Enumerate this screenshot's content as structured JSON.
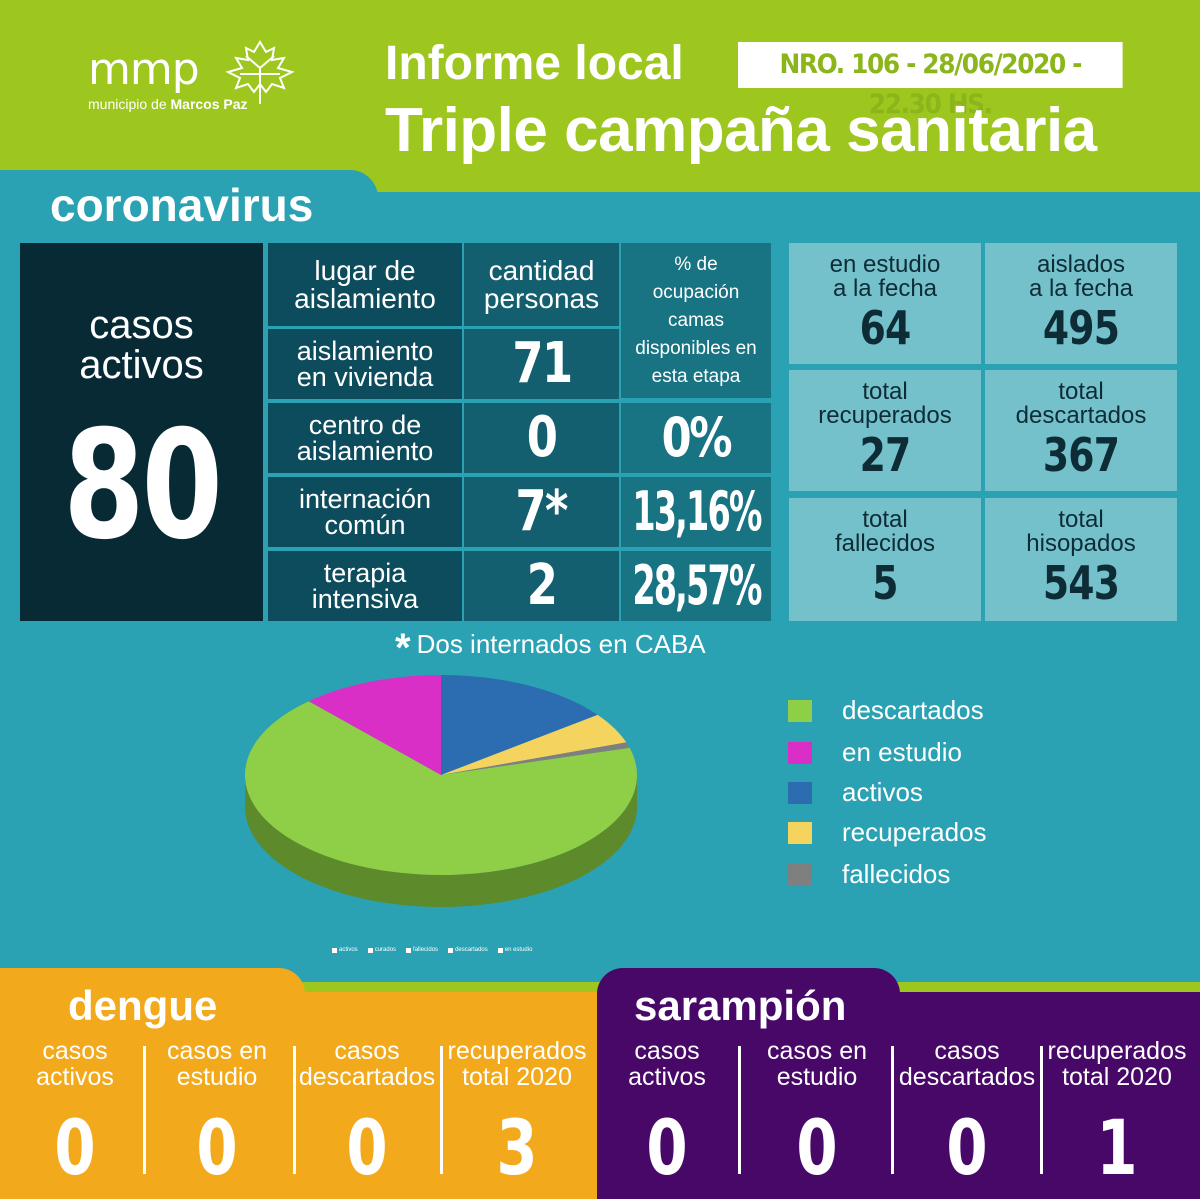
{
  "header": {
    "logo_main": "mmp",
    "logo_sub_prefix": "municipio de ",
    "logo_sub_bold": "Marcos Paz",
    "title_line1": "Informe local",
    "report_number": "NRO. 106 - 28/06/2020 - 22.30 HS.",
    "title_line2": "Triple campaña sanitaria"
  },
  "coronavirus": {
    "title": "coronavirus",
    "active_label_1": "casos",
    "active_label_2": "activos",
    "active_value": "80",
    "table": {
      "headers": {
        "col1": [
          "lugar de",
          "aislamiento"
        ],
        "col2": [
          "cantidad",
          "personas"
        ],
        "col3": [
          "% de",
          "ocupación",
          "camas",
          "disponibles en",
          "esta etapa"
        ]
      },
      "rows": [
        {
          "label": [
            "aislamiento",
            "en vivienda"
          ],
          "count": "71",
          "pct": ""
        },
        {
          "label": [
            "centro de",
            "aislamiento"
          ],
          "count": "0",
          "pct": "0%"
        },
        {
          "label": [
            "internación",
            "común"
          ],
          "count": "7*",
          "pct": "13,16%"
        },
        {
          "label": [
            "terapia",
            "intensiva"
          ],
          "count": "2",
          "pct": "28,57%"
        }
      ]
    },
    "stats": [
      {
        "label": [
          "en estudio",
          "a la fecha"
        ],
        "value": "64"
      },
      {
        "label": [
          "aislados",
          "a la fecha"
        ],
        "value": "495"
      },
      {
        "label": [
          "total",
          "recuperados"
        ],
        "value": "27"
      },
      {
        "label": [
          "total",
          "descartados"
        ],
        "value": "367"
      },
      {
        "label": [
          "total",
          "fallecidos"
        ],
        "value": "5"
      },
      {
        "label": [
          "total",
          "hisopados"
        ],
        "value": "543"
      }
    ],
    "note_star": "*",
    "note": "Dos internados en CABA",
    "legend": [
      {
        "label": "descartados",
        "color": "#8fcf47"
      },
      {
        "label": "en estudio",
        "color": "#d92fc7"
      },
      {
        "label": "activos",
        "color": "#2c6cb0"
      },
      {
        "label": "recuperados",
        "color": "#f4d35e"
      },
      {
        "label": "fallecidos",
        "color": "#7f7f7f"
      }
    ],
    "tiny_legend": [
      "activos",
      "curados",
      "fallecidos",
      "descartados",
      "en estudio"
    ]
  },
  "chart_data": {
    "type": "pie",
    "categories": [
      "activos",
      "recuperados",
      "fallecidos",
      "descartados",
      "en estudio"
    ],
    "values": [
      80,
      27,
      5,
      367,
      64
    ],
    "colors": [
      "#2c6cb0",
      "#f4d35e",
      "#7f7f7f",
      "#8fcf47",
      "#d92fc7"
    ]
  },
  "dengue": {
    "title": "dengue",
    "columns": [
      {
        "label": [
          "casos",
          "activos"
        ],
        "value": "0"
      },
      {
        "label": [
          "casos en",
          "estudio"
        ],
        "value": "0"
      },
      {
        "label": [
          "casos",
          "descartados"
        ],
        "value": "0"
      },
      {
        "label": [
          "recuperados",
          "total 2020"
        ],
        "value": "3"
      }
    ]
  },
  "sarampion": {
    "title": "sarampión",
    "columns": [
      {
        "label": [
          "casos",
          "activos"
        ],
        "value": "0"
      },
      {
        "label": [
          "casos en",
          "estudio"
        ],
        "value": "0"
      },
      {
        "label": [
          "casos",
          "descartados"
        ],
        "value": "0"
      },
      {
        "label": [
          "recuperados",
          "total 2020"
        ],
        "value": "1"
      }
    ]
  }
}
